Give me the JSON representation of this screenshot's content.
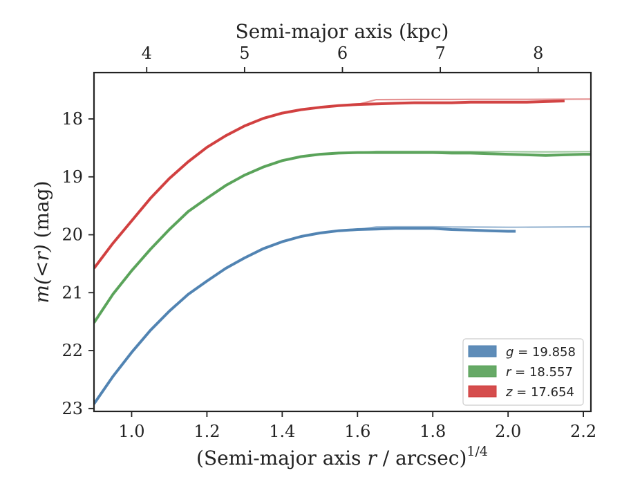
{
  "chart_data": {
    "type": "line",
    "xlabel_text": "(Semi-major axis ",
    "xlabel_var": "r",
    "xlabel_unit": " / arcsec)",
    "xlabel_sup": "1/4",
    "ylabel_prefix": "m(<r)",
    "ylabel_suffix": " (mag)",
    "top_xlabel": "Semi-major axis (kpc)",
    "xlim": [
      0.9,
      2.22
    ],
    "ylim": [
      23.05,
      17.2
    ],
    "y_inverted": true,
    "xticks": [
      1.0,
      1.2,
      1.4,
      1.6,
      1.8,
      2.0,
      2.2
    ],
    "xtick_labels": [
      "1.0",
      "1.2",
      "1.4",
      "1.6",
      "1.8",
      "2.0",
      "2.2"
    ],
    "yticks": [
      18,
      19,
      20,
      21,
      22,
      23
    ],
    "ytick_labels": [
      "18",
      "19",
      "20",
      "21",
      "22",
      "23"
    ],
    "top_ticks_kpc": [
      4,
      5,
      6,
      7,
      8
    ],
    "top_tick_labels": [
      "4",
      "5",
      "6",
      "7",
      "8"
    ],
    "top_tick_positions_x": [
      1.04,
      1.3,
      1.56,
      1.82,
      2.08
    ],
    "legend_position": "lower-right",
    "series": [
      {
        "name": "g = 19.858",
        "legend_var": "g",
        "legend_value": " = 19.858",
        "color": "#4c7fb0",
        "asymptote": 19.858,
        "x": [
          0.9,
          0.95,
          1.0,
          1.05,
          1.1,
          1.15,
          1.2,
          1.25,
          1.3,
          1.35,
          1.4,
          1.45,
          1.5,
          1.55,
          1.6,
          1.65,
          1.7,
          1.75,
          1.8,
          1.85,
          1.9,
          1.95,
          2.0,
          2.02
        ],
        "y": [
          22.92,
          22.45,
          22.03,
          21.65,
          21.32,
          21.03,
          20.8,
          20.58,
          20.4,
          20.24,
          20.12,
          20.03,
          19.97,
          19.93,
          19.91,
          19.9,
          19.89,
          19.89,
          19.89,
          19.91,
          19.92,
          19.93,
          19.94,
          19.94
        ]
      },
      {
        "name": "r = 18.557",
        "legend_var": "r",
        "legend_value": " = 18.557",
        "color": "#55a055",
        "asymptote": 18.557,
        "x": [
          0.9,
          0.95,
          1.0,
          1.05,
          1.1,
          1.15,
          1.2,
          1.25,
          1.3,
          1.35,
          1.4,
          1.45,
          1.5,
          1.55,
          1.6,
          1.65,
          1.7,
          1.75,
          1.8,
          1.85,
          1.9,
          1.95,
          2.0,
          2.05,
          2.1,
          2.15,
          2.2,
          2.22
        ],
        "y": [
          21.52,
          21.03,
          20.62,
          20.25,
          19.91,
          19.6,
          19.37,
          19.15,
          18.97,
          18.83,
          18.72,
          18.65,
          18.61,
          18.59,
          18.58,
          18.58,
          18.58,
          18.58,
          18.58,
          18.59,
          18.59,
          18.6,
          18.61,
          18.62,
          18.63,
          18.62,
          18.61,
          18.61
        ]
      },
      {
        "name": "z = 17.654",
        "legend_var": "z",
        "legend_value": " = 17.654",
        "color": "#d03a3a",
        "asymptote": 17.654,
        "x": [
          0.9,
          0.95,
          1.0,
          1.05,
          1.1,
          1.15,
          1.2,
          1.25,
          1.3,
          1.35,
          1.4,
          1.45,
          1.5,
          1.55,
          1.6,
          1.65,
          1.7,
          1.75,
          1.8,
          1.85,
          1.9,
          1.95,
          2.0,
          2.05,
          2.1,
          2.15
        ],
        "y": [
          20.58,
          20.15,
          19.76,
          19.37,
          19.03,
          18.74,
          18.49,
          18.29,
          18.12,
          17.99,
          17.9,
          17.84,
          17.8,
          17.77,
          17.75,
          17.74,
          17.73,
          17.72,
          17.72,
          17.72,
          17.71,
          17.71,
          17.71,
          17.71,
          17.7,
          17.69
        ]
      }
    ]
  }
}
